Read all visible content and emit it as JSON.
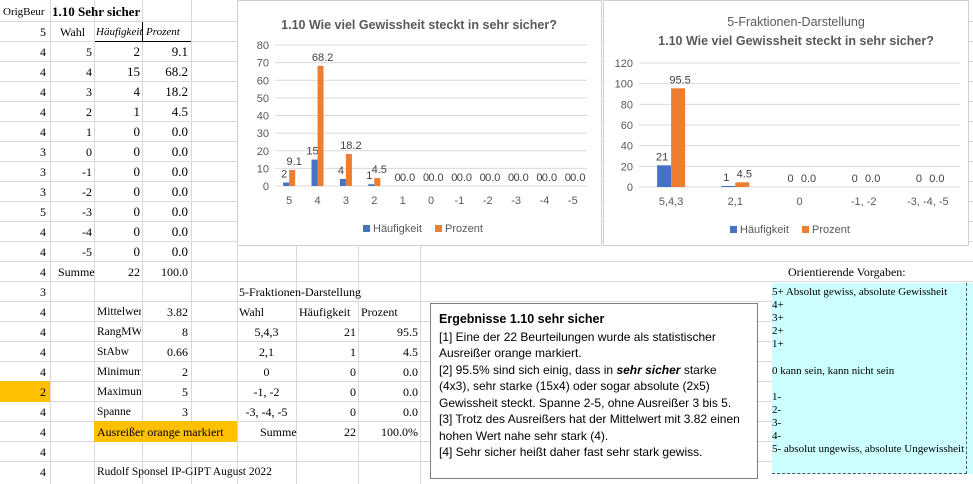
{
  "sheet": {
    "header_left": "OrigBeur",
    "header_title": "1.10 Sehr sicher",
    "col_headers": {
      "origbeur": "5",
      "wahl": "Wahl",
      "haeufigkeit": "Häufigkeit",
      "prozent": "Prozent"
    },
    "rows": [
      {
        "orig": "4",
        "wahl": "5",
        "h": "2",
        "p": "9.1"
      },
      {
        "orig": "4",
        "wahl": "4",
        "h": "15",
        "p": "68.2"
      },
      {
        "orig": "4",
        "wahl": "3",
        "h": "4",
        "p": "18.2"
      },
      {
        "orig": "4",
        "wahl": "2",
        "h": "1",
        "p": "4.5"
      },
      {
        "orig": "4",
        "wahl": "1",
        "h": "0",
        "p": "0.0"
      },
      {
        "orig": "3",
        "wahl": "0",
        "h": "0",
        "p": "0.0"
      },
      {
        "orig": "3",
        "wahl": "-1",
        "h": "0",
        "p": "0.0"
      },
      {
        "orig": "3",
        "wahl": "-2",
        "h": "0",
        "p": "0.0"
      },
      {
        "orig": "5",
        "wahl": "-3",
        "h": "0",
        "p": "0.0"
      },
      {
        "orig": "4",
        "wahl": "-4",
        "h": "0",
        "p": "0.0"
      },
      {
        "orig": "4",
        "wahl": "-5",
        "h": "0",
        "p": "0.0"
      }
    ],
    "summe_row": {
      "orig": "4",
      "label": "Summe",
      "h": "22",
      "p": "100.0"
    },
    "lower_orig": [
      "3",
      "4",
      "4",
      "4",
      "4",
      "2",
      "4",
      "4",
      "4",
      "4"
    ],
    "stats": [
      {
        "label": "Mittelwer",
        "value": "3.82"
      },
      {
        "label": "RangMW",
        "value": "8"
      },
      {
        "label": "StAbw",
        "value": "0.66"
      },
      {
        "label": "Minimum",
        "value": "2"
      },
      {
        "label": "Maximun",
        "value": "5"
      },
      {
        "label": "Spanne",
        "value": "3"
      }
    ],
    "outlier_note": "Ausreißer orange markiert",
    "credit": "Rudolf Sponsel IP-GIPT August 2022"
  },
  "five_table": {
    "title": "5-Fraktionen-Darstellung",
    "headers": [
      "Wahl",
      "Häufigkeit",
      "Prozent"
    ],
    "rows": [
      {
        "wahl": "5,4,3",
        "h": "21",
        "p": "95.5"
      },
      {
        "wahl": "2,1",
        "h": "1",
        "p": "4.5"
      },
      {
        "wahl": "0",
        "h": "0",
        "p": "0.0"
      },
      {
        "wahl": "-1, -2",
        "h": "0",
        "p": "0.0"
      },
      {
        "wahl": "-3, -4, -5",
        "h": "0",
        "p": "0.0"
      }
    ],
    "summe": {
      "label": "Summe",
      "h": "22",
      "p": "100.0%"
    }
  },
  "textbox": {
    "title": "Ergebnisse 1.10 sehr sicher",
    "p1": "[1]  Eine der 22 Beurteilungen wurde als statistischer Ausreißer orange markiert.",
    "p2_a": "[2] 95.5% sind sich einig, dass in ",
    "p2_em": "sehr sicher",
    "p2_b": "  starke  (4x3), sehr starke (15x4) oder sogar absolute (2x5) Gewissheit steckt. Spanne 2-5, ohne Ausreißer 3 bis 5.",
    "p3": "[3] Trotz des Ausreißers hat der Mittelwert mit 3.82 einen hohen Wert nahe sehr stark (4).",
    "p4": "[4] Sehr sicher heißt daher fast sehr stark gewiss."
  },
  "vorgaben": {
    "title": "Orientierende Vorgaben:",
    "lines": [
      "5+ Absolut gewiss, absolute Gewissheit",
      "4+",
      "3+",
      "2+",
      "1+",
      "",
      "0   kann sein, kann nicht sein",
      "",
      "1-",
      "2-",
      "3-",
      "4-",
      "5- absolut ungewiss, absolute Ungewissheit"
    ]
  },
  "colors": {
    "haeufigkeit": "#4472c4",
    "prozent": "#ed7d31",
    "outlier": "#ffc000",
    "vorgaben_bg": "#ccffff"
  },
  "chart_data": [
    {
      "type": "bar",
      "title": "1.10 Wie viel Gewissheit steckt in sehr sicher?",
      "categories": [
        "5",
        "4",
        "3",
        "2",
        "1",
        "0",
        "-1",
        "-2",
        "-3",
        "-4",
        "-5"
      ],
      "series": [
        {
          "name": "Häufigkeit",
          "values": [
            2,
            15,
            4,
            1,
            0,
            0,
            0,
            0,
            0,
            0,
            0
          ]
        },
        {
          "name": "Prozent",
          "values": [
            9.1,
            68.2,
            18.2,
            4.5,
            0.0,
            0.0,
            0.0,
            0.0,
            0.0,
            0.0,
            0.0
          ]
        }
      ],
      "labels_h": [
        "2",
        "15",
        "4",
        "1",
        "0",
        "0",
        "0",
        "0",
        "0",
        "0",
        "0"
      ],
      "labels_p": [
        "9.1",
        "68.2",
        "18.2",
        "4.5",
        "0.0",
        "0.0",
        "0.0",
        "0.0",
        "0.0",
        "0.0",
        "0.0"
      ],
      "yticks": [
        "0",
        "10",
        "20",
        "30",
        "40",
        "50",
        "60",
        "70",
        "80"
      ],
      "ylim": [
        0,
        80
      ],
      "legend": "bottom"
    },
    {
      "type": "bar",
      "title_line1": "5-Fraktionen-Darstellung",
      "title_line2": "1.10 Wie viel Gewissheit steckt in sehr sicher?",
      "categories": [
        "5,4,3",
        "2,1",
        "0",
        "-1, -2",
        "-3, -4, -5"
      ],
      "series": [
        {
          "name": "Häufigkeit",
          "values": [
            21,
            1,
            0,
            0,
            0
          ]
        },
        {
          "name": "Prozent",
          "values": [
            95.5,
            4.5,
            0.0,
            0.0,
            0.0
          ]
        }
      ],
      "labels_h": [
        "21",
        "1",
        "0",
        "0",
        "0"
      ],
      "labels_p": [
        "95.5",
        "4.5",
        "0.0",
        "0.0",
        "0.0"
      ],
      "yticks": [
        "0",
        "20",
        "40",
        "60",
        "80",
        "100",
        "120"
      ],
      "ylim": [
        0,
        120
      ],
      "legend": "bottom"
    }
  ]
}
